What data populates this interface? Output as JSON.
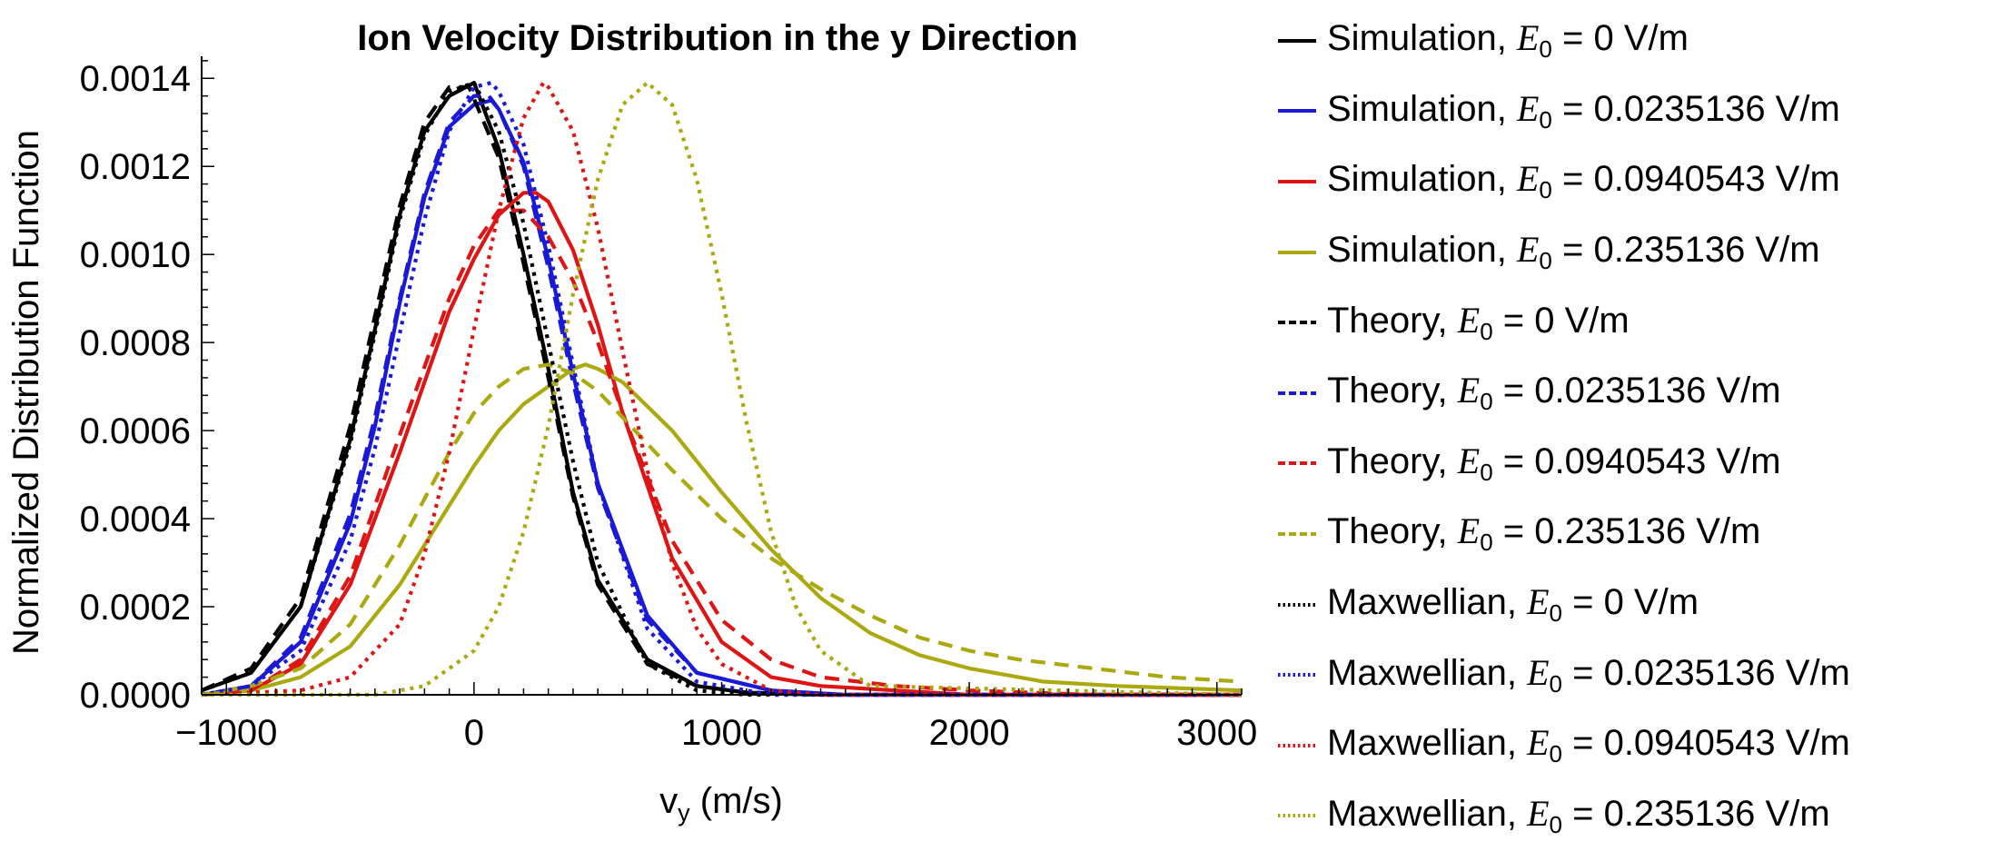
{
  "chart_data": {
    "type": "line",
    "title": "Ion Velocity Distribution in the y Direction",
    "xlabel_main": "v",
    "xlabel_sub": "y",
    "xlabel_unit": " (m/s)",
    "ylabel": "Normalized Distribution Function",
    "xlim": [
      -1100,
      3100
    ],
    "ylim": [
      0,
      0.00145
    ],
    "x_ticks": [
      -1000,
      0,
      1000,
      2000,
      3000
    ],
    "x_tick_labels": [
      "−1000",
      "0",
      "1000",
      "2000",
      "3000"
    ],
    "y_ticks": [
      0,
      0.0002,
      0.0004,
      0.0006,
      0.0008,
      0.001,
      0.0012,
      0.0014
    ],
    "y_tick_labels": [
      "0.0000",
      "0.0002",
      "0.0004",
      "0.0006",
      "0.0008",
      "0.0010",
      "0.0012",
      "0.0014"
    ],
    "x_grid": [
      -1100,
      -1000,
      -900,
      -800,
      -700,
      -600,
      -500,
      -400,
      -300,
      -200,
      -100,
      0,
      100,
      200,
      300,
      400,
      500,
      600,
      700,
      800,
      900,
      1000,
      1100,
      1200,
      1300,
      1400,
      1500,
      1600,
      1700,
      1800,
      1900,
      2000,
      2100,
      2200,
      2300,
      2400,
      2500,
      2600,
      2700,
      2800,
      2900,
      3000,
      3100
    ],
    "colors": {
      "black": "#000000",
      "blue": "#1a1ad6",
      "red": "#dd1515",
      "olive": "#aaaa10"
    },
    "series": [
      {
        "name": "Simulation, E0 = 0 V/m",
        "color": "#000000",
        "style": "solid",
        "x": [
          -1100,
          -900,
          -700,
          -500,
          -400,
          -300,
          -200,
          -100,
          0,
          100,
          200,
          300,
          400,
          500,
          700,
          900,
          1100,
          1400,
          3100
        ],
        "y": [
          1e-05,
          5e-05,
          0.0002,
          0.00058,
          0.00083,
          0.00109,
          0.00128,
          0.00136,
          0.00139,
          0.00124,
          0.001,
          0.00074,
          0.00046,
          0.00026,
          8e-05,
          2e-05,
          5e-06,
          0,
          0
        ]
      },
      {
        "name": "Simulation, E0 = 0.0235136 V/m",
        "color": "#1a1ad6",
        "style": "solid",
        "x": [
          -1100,
          -900,
          -700,
          -500,
          -400,
          -300,
          -200,
          -100,
          0,
          70,
          100,
          200,
          300,
          400,
          500,
          700,
          900,
          1200,
          1500,
          3100
        ],
        "y": [
          0,
          2e-05,
          0.00012,
          0.00039,
          0.00061,
          0.00089,
          0.00113,
          0.00129,
          0.00134,
          0.00135,
          0.00133,
          0.00121,
          0.00099,
          0.00073,
          0.00048,
          0.00018,
          5e-05,
          1e-05,
          0,
          0
        ]
      },
      {
        "name": "Simulation, E0 = 0.0940543 V/m",
        "color": "#dd1515",
        "style": "solid",
        "x": [
          -1100,
          -900,
          -700,
          -500,
          -300,
          -100,
          0,
          100,
          200,
          250,
          300,
          400,
          500,
          600,
          800,
          1000,
          1200,
          1400,
          1700,
          2000,
          3100
        ],
        "y": [
          0,
          1e-05,
          7e-05,
          0.00025,
          0.00055,
          0.00087,
          0.00099,
          0.00109,
          0.00114,
          0.00114,
          0.00112,
          0.00101,
          0.00084,
          0.00064,
          0.00031,
          0.00012,
          4e-05,
          2e-05,
          1e-05,
          0,
          0
        ]
      },
      {
        "name": "Simulation, E0 = 0.235136 V/m",
        "color": "#aaaa10",
        "style": "solid",
        "x": [
          -1100,
          -900,
          -700,
          -500,
          -300,
          -100,
          0,
          100,
          200,
          300,
          400,
          450,
          500,
          600,
          800,
          1000,
          1200,
          1400,
          1600,
          1800,
          2000,
          2300,
          2600,
          3100
        ],
        "y": [
          0,
          1e-05,
          4e-05,
          0.00011,
          0.00025,
          0.00043,
          0.00052,
          0.0006,
          0.00066,
          0.0007,
          0.00074,
          0.00075,
          0.00074,
          0.00071,
          0.0006,
          0.00046,
          0.00033,
          0.00022,
          0.00014,
          9e-05,
          6e-05,
          3e-05,
          2e-05,
          1e-05
        ]
      },
      {
        "name": "Theory, E0 = 0 V/m",
        "color": "#000000",
        "style": "dashed",
        "x": [
          -1100,
          -900,
          -700,
          -500,
          -400,
          -300,
          -200,
          -100,
          -20,
          100,
          200,
          300,
          400,
          500,
          700,
          900,
          1100,
          1400,
          3100
        ],
        "y": [
          1e-05,
          6e-05,
          0.00022,
          0.00061,
          0.00086,
          0.00111,
          0.0013,
          0.00138,
          0.00138,
          0.00122,
          0.00098,
          0.00072,
          0.00045,
          0.00025,
          7e-05,
          2e-05,
          5e-06,
          0,
          0
        ]
      },
      {
        "name": "Theory, E0 = 0.0235136 V/m",
        "color": "#1a1ad6",
        "style": "dashed",
        "x": [
          -1100,
          -900,
          -700,
          -500,
          -400,
          -300,
          -200,
          -100,
          0,
          60,
          100,
          200,
          300,
          400,
          500,
          700,
          900,
          1200,
          1500,
          3100
        ],
        "y": [
          0,
          2e-05,
          0.00013,
          0.00041,
          0.00063,
          0.0009,
          0.00114,
          0.0013,
          0.00136,
          0.00136,
          0.00133,
          0.0012,
          0.00097,
          0.00071,
          0.00047,
          0.00017,
          5e-05,
          1e-05,
          0,
          0
        ]
      },
      {
        "name": "Theory, E0 = 0.0940543 V/m",
        "color": "#dd1515",
        "style": "dashed",
        "x": [
          -1100,
          -900,
          -700,
          -500,
          -300,
          -100,
          0,
          100,
          200,
          300,
          400,
          500,
          600,
          800,
          1000,
          1200,
          1400,
          1700,
          2000,
          2500,
          3100
        ],
        "y": [
          0,
          1e-05,
          8e-05,
          0.00027,
          0.00059,
          0.0009,
          0.00102,
          0.0011,
          0.0011,
          0.00104,
          0.00094,
          0.0008,
          0.00064,
          0.00035,
          0.00017,
          8e-05,
          4e-05,
          2e-05,
          1e-05,
          0,
          0
        ]
      },
      {
        "name": "Theory, E0 = 0.235136 V/m",
        "color": "#aaaa10",
        "style": "dashed",
        "x": [
          -1100,
          -900,
          -700,
          -500,
          -300,
          -100,
          0,
          100,
          200,
          300,
          400,
          500,
          600,
          800,
          1000,
          1200,
          1400,
          1600,
          1800,
          2000,
          2200,
          2500,
          2800,
          3100
        ],
        "y": [
          0,
          2e-05,
          6e-05,
          0.00016,
          0.00034,
          0.00055,
          0.00064,
          0.0007,
          0.00074,
          0.00075,
          0.00073,
          0.00069,
          0.00063,
          0.00051,
          0.0004,
          0.00031,
          0.00024,
          0.00018,
          0.00013,
          0.0001,
          8e-05,
          6e-05,
          4e-05,
          3e-05
        ]
      },
      {
        "name": "Maxwellian, E0 = 0 V/m",
        "color": "#000000",
        "style": "dotted",
        "x": [
          -1100,
          -900,
          -700,
          -500,
          -400,
          -300,
          -200,
          -100,
          0,
          100,
          200,
          300,
          400,
          500,
          700,
          900,
          1100,
          1400,
          3100
        ],
        "y": [
          1e-05,
          5e-05,
          0.0002,
          0.00057,
          0.00082,
          0.00108,
          0.00127,
          0.00137,
          0.00139,
          0.00128,
          0.00107,
          0.0008,
          0.00053,
          0.0003,
          7e-05,
          1e-05,
          0,
          0,
          0
        ]
      },
      {
        "name": "Maxwellian, E0 = 0.0235136 V/m",
        "color": "#1a1ad6",
        "style": "dotted",
        "x": [
          -1100,
          -900,
          -700,
          -500,
          -400,
          -300,
          -200,
          -100,
          0,
          70,
          100,
          200,
          300,
          400,
          500,
          700,
          900,
          1200,
          3100
        ],
        "y": [
          0,
          2e-05,
          0.0001,
          0.00035,
          0.00056,
          0.00082,
          0.00108,
          0.00128,
          0.00138,
          0.00139,
          0.00137,
          0.00125,
          0.00102,
          0.00075,
          0.00048,
          0.00015,
          3e-05,
          0,
          0
        ]
      },
      {
        "name": "Maxwellian, E0 = 0.0940543 V/m",
        "color": "#dd1515",
        "style": "dotted",
        "x": [
          -1100,
          -700,
          -500,
          -300,
          -200,
          -100,
          0,
          100,
          200,
          280,
          300,
          400,
          500,
          600,
          700,
          800,
          900,
          1000,
          1200,
          1400,
          3100
        ],
        "y": [
          0,
          1e-05,
          4e-05,
          0.00016,
          0.00032,
          0.00055,
          0.00083,
          0.0011,
          0.00131,
          0.00139,
          0.00138,
          0.00128,
          0.00106,
          0.00078,
          0.00051,
          0.0003,
          0.00015,
          7e-05,
          1e-05,
          0,
          0
        ]
      },
      {
        "name": "Maxwellian, E0 = 0.235136 V/m",
        "color": "#aaaa10",
        "style": "dotted",
        "x": [
          -1100,
          -400,
          -200,
          0,
          100,
          200,
          300,
          400,
          500,
          600,
          700,
          800,
          900,
          1000,
          1100,
          1200,
          1300,
          1400,
          1600,
          3100
        ],
        "y": [
          0,
          0,
          2e-05,
          0.0001,
          0.0002,
          0.00037,
          0.00061,
          0.00091,
          0.00117,
          0.00134,
          0.00139,
          0.00134,
          0.00117,
          0.00091,
          0.00062,
          0.00037,
          0.0002,
          0.0001,
          2e-05,
          0
        ]
      }
    ]
  },
  "legend": {
    "items": [
      {
        "prefix": "Simulation, ",
        "e": "E",
        "sub": "0",
        "suffix": " = 0 V/m",
        "color": "#000000",
        "style": "solid"
      },
      {
        "prefix": "Simulation, ",
        "e": "E",
        "sub": "0",
        "suffix": " = 0.0235136 V/m",
        "color": "#1a1ad6",
        "style": "solid"
      },
      {
        "prefix": "Simulation, ",
        "e": "E",
        "sub": "0",
        "suffix": " = 0.0940543 V/m",
        "color": "#dd1515",
        "style": "solid"
      },
      {
        "prefix": "Simulation, ",
        "e": "E",
        "sub": "0",
        "suffix": " = 0.235136 V/m",
        "color": "#aaaa10",
        "style": "solid"
      },
      {
        "prefix": "Theory, ",
        "e": "E",
        "sub": "0",
        "suffix": " = 0 V/m",
        "color": "#000000",
        "style": "dashed"
      },
      {
        "prefix": "Theory, ",
        "e": "E",
        "sub": "0",
        "suffix": " = 0.0235136 V/m",
        "color": "#1a1ad6",
        "style": "dashed"
      },
      {
        "prefix": "Theory, ",
        "e": "E",
        "sub": "0",
        "suffix": " = 0.0940543 V/m",
        "color": "#dd1515",
        "style": "dashed"
      },
      {
        "prefix": "Theory, ",
        "e": "E",
        "sub": "0",
        "suffix": " = 0.235136 V/m",
        "color": "#aaaa10",
        "style": "dashed"
      },
      {
        "prefix": "Maxwellian, ",
        "e": "E",
        "sub": "0",
        "suffix": " = 0 V/m",
        "color": "#000000",
        "style": "dotted"
      },
      {
        "prefix": "Maxwellian, ",
        "e": "E",
        "sub": "0",
        "suffix": " = 0.0235136 V/m",
        "color": "#1a1ad6",
        "style": "dotted"
      },
      {
        "prefix": "Maxwellian, ",
        "e": "E",
        "sub": "0",
        "suffix": " = 0.0940543 V/m",
        "color": "#dd1515",
        "style": "dotted"
      },
      {
        "prefix": "Maxwellian, ",
        "e": "E",
        "sub": "0",
        "suffix": " = 0.235136 V/m",
        "color": "#aaaa10",
        "style": "dotted"
      }
    ]
  }
}
